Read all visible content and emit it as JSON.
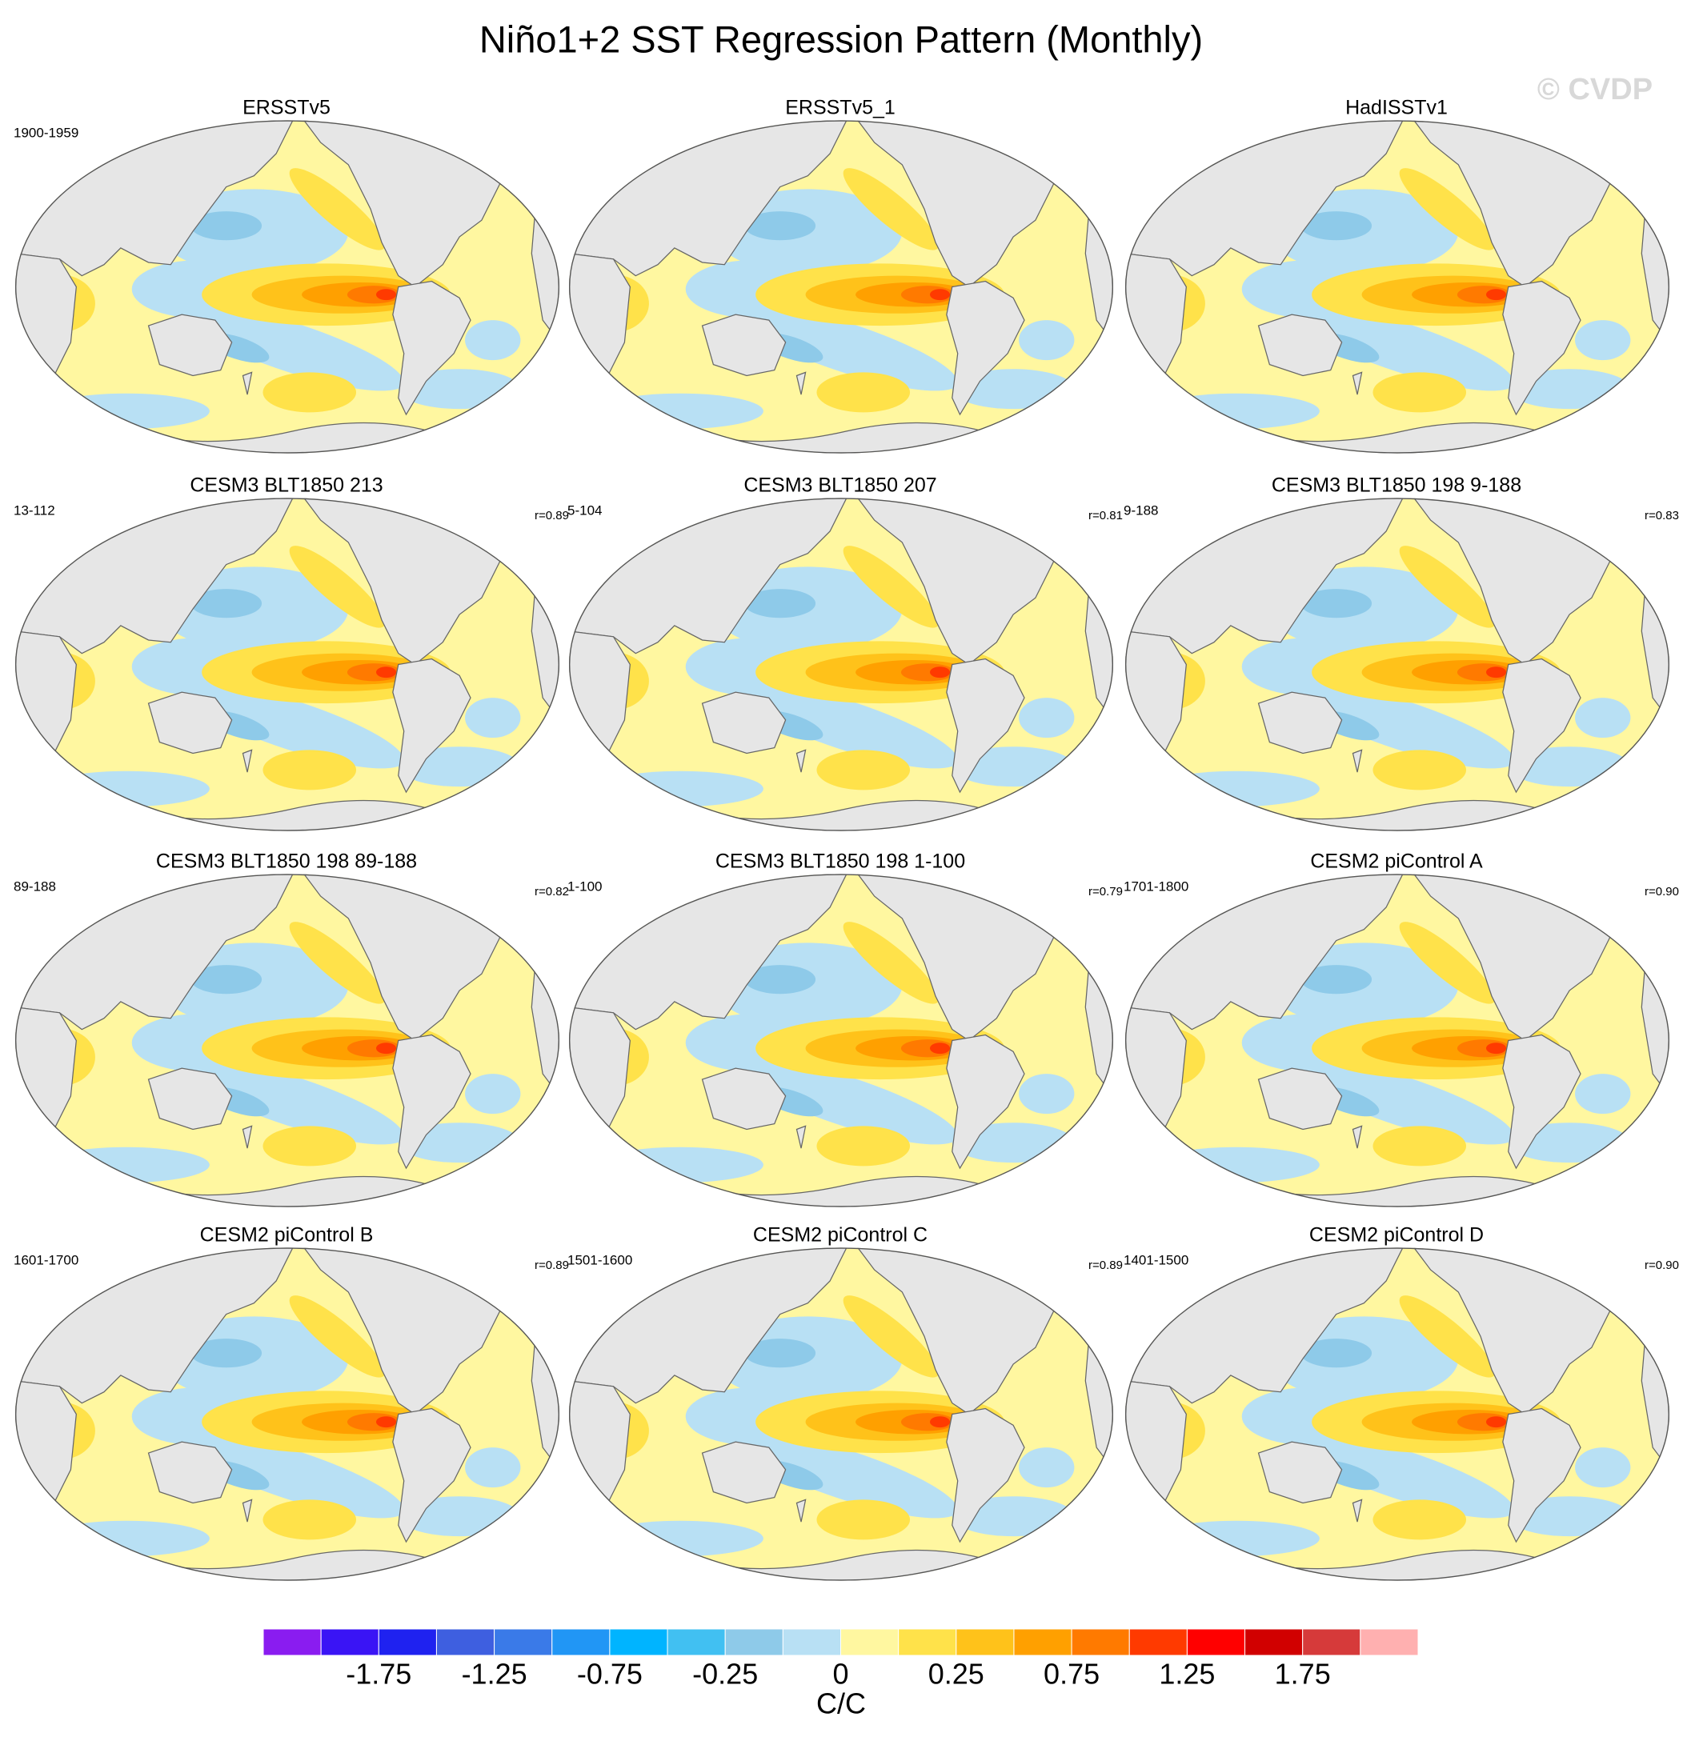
{
  "title": "Niño1+2 SST Regression Pattern (Monthly)",
  "watermark": "© CVDP",
  "panels": [
    {
      "title": "ERSSTv5",
      "left": "1900-1959"
    },
    {
      "title": "ERSSTv5_1"
    },
    {
      "title": "HadISSTv1"
    },
    {
      "title": "CESM3 BLT1850 213",
      "left": "13-112",
      "right": "r=0.89"
    },
    {
      "title": "CESM3 BLT1850 207",
      "left": "5-104",
      "right": "r=0.81"
    },
    {
      "title": "CESM3 BLT1850 198 9-188",
      "left": "9-188",
      "right": "r=0.83"
    },
    {
      "title": "CESM3 BLT1850 198 89-188",
      "left": "89-188",
      "right": "r=0.82"
    },
    {
      "title": "CESM3 BLT1850 198 1-100",
      "left": "1-100",
      "right": "r=0.79"
    },
    {
      "title": "CESM2 piControl A",
      "left": "1701-1800",
      "right": "r=0.90"
    },
    {
      "title": "CESM2 piControl B",
      "left": "1601-1700",
      "right": "r=0.89"
    },
    {
      "title": "CESM2 piControl C",
      "left": "1501-1600",
      "right": "r=0.89"
    },
    {
      "title": "CESM2 piControl D",
      "left": "1401-1500",
      "right": "r=0.90"
    }
  ],
  "colorbar": {
    "colors": [
      "#8a1cf0",
      "#3a14f5",
      "#1f22f0",
      "#3e5fe0",
      "#3a7ae8",
      "#2196f5",
      "#00b4ff",
      "#41c0f2",
      "#8ecae9",
      "#b8e0f4",
      "#fff7a0",
      "#ffe24a",
      "#ffc21a",
      "#ffa000",
      "#ff7a00",
      "#ff3a00",
      "#ff0000",
      "#d10000",
      "#d63a3a",
      "#ffb0b0"
    ],
    "ticks": [
      -1.75,
      -1.25,
      -0.75,
      -0.25,
      0,
      0.25,
      0.75,
      1.25,
      1.75
    ],
    "label": "C/C"
  }
}
